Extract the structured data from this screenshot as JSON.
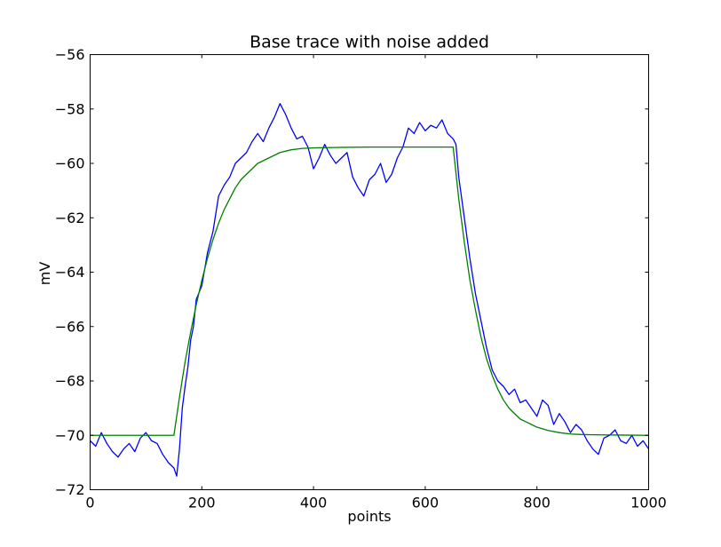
{
  "chart_data": {
    "type": "line",
    "title": "Base trace with noise added",
    "xlabel": "points",
    "ylabel": "mV",
    "xlim": [
      0,
      1000
    ],
    "ylim": [
      -72,
      -56
    ],
    "xticks": [
      0,
      200,
      400,
      600,
      800,
      1000
    ],
    "xtick_labels": [
      "0",
      "200",
      "400",
      "600",
      "800",
      "1000"
    ],
    "yticks": [
      -72,
      -70,
      -68,
      -66,
      -64,
      -62,
      -60,
      -58,
      -56
    ],
    "ytick_labels": [
      "−72",
      "−70",
      "−68",
      "−66",
      "−64",
      "−62",
      "−60",
      "−58",
      "−56"
    ],
    "grid": false,
    "legend": false,
    "series": [
      {
        "color": "#0000ff",
        "x": [
          0,
          10,
          20,
          30,
          40,
          50,
          60,
          70,
          80,
          90,
          100,
          110,
          120,
          130,
          140,
          150,
          155,
          160,
          165,
          170,
          175,
          180,
          185,
          190,
          200,
          210,
          220,
          230,
          240,
          250,
          260,
          270,
          280,
          290,
          300,
          310,
          320,
          330,
          340,
          350,
          360,
          370,
          380,
          390,
          400,
          410,
          420,
          430,
          440,
          450,
          460,
          470,
          480,
          490,
          500,
          510,
          520,
          530,
          540,
          550,
          560,
          570,
          580,
          590,
          600,
          610,
          620,
          630,
          640,
          650,
          655,
          660,
          670,
          680,
          690,
          700,
          710,
          720,
          730,
          740,
          750,
          760,
          770,
          780,
          790,
          800,
          810,
          820,
          830,
          840,
          850,
          860,
          870,
          880,
          890,
          900,
          910,
          920,
          930,
          940,
          950,
          960,
          970,
          980,
          990,
          1000
        ],
        "y": [
          -70.2,
          -70.4,
          -69.9,
          -70.3,
          -70.6,
          -70.8,
          -70.5,
          -70.3,
          -70.6,
          -70.1,
          -69.9,
          -70.2,
          -70.3,
          -70.7,
          -71.0,
          -71.2,
          -71.5,
          -70.5,
          -69.0,
          -68.2,
          -67.5,
          -66.5,
          -66.0,
          -65.0,
          -64.5,
          -63.3,
          -62.5,
          -61.2,
          -60.8,
          -60.5,
          -60.0,
          -59.8,
          -59.6,
          -59.2,
          -58.9,
          -59.2,
          -58.7,
          -58.3,
          -57.8,
          -58.2,
          -58.7,
          -59.1,
          -59.0,
          -59.4,
          -60.2,
          -59.8,
          -59.3,
          -59.7,
          -60.0,
          -59.8,
          -59.6,
          -60.5,
          -60.9,
          -61.2,
          -60.6,
          -60.4,
          -60.0,
          -60.7,
          -60.4,
          -59.8,
          -59.4,
          -58.7,
          -58.9,
          -58.5,
          -58.8,
          -58.6,
          -58.7,
          -58.4,
          -58.9,
          -59.1,
          -59.3,
          -60.5,
          -62.0,
          -63.5,
          -64.8,
          -65.8,
          -66.8,
          -67.6,
          -68.0,
          -68.2,
          -68.5,
          -68.3,
          -68.8,
          -68.7,
          -69.0,
          -69.3,
          -68.7,
          -68.9,
          -69.6,
          -69.2,
          -69.5,
          -69.9,
          -69.6,
          -69.8,
          -70.2,
          -70.5,
          -70.7,
          -70.1,
          -70.0,
          -69.8,
          -70.2,
          -70.3,
          -70.0,
          -70.4,
          -70.2,
          -70.5
        ]
      },
      {
        "color": "#008000",
        "x": [
          0,
          50,
          100,
          150,
          160,
          170,
          180,
          190,
          200,
          210,
          220,
          230,
          240,
          250,
          260,
          270,
          280,
          290,
          300,
          320,
          340,
          360,
          380,
          400,
          450,
          500,
          550,
          600,
          650,
          660,
          670,
          680,
          690,
          700,
          710,
          720,
          730,
          740,
          750,
          760,
          770,
          780,
          790,
          800,
          820,
          840,
          860,
          880,
          900,
          950,
          1000
        ],
        "y": [
          -70.0,
          -70.0,
          -70.0,
          -70.0,
          -68.6,
          -67.3,
          -66.2,
          -65.2,
          -64.3,
          -63.5,
          -62.8,
          -62.2,
          -61.7,
          -61.3,
          -60.9,
          -60.6,
          -60.4,
          -60.2,
          -60.0,
          -59.8,
          -59.6,
          -59.5,
          -59.45,
          -59.43,
          -59.41,
          -59.4,
          -59.4,
          -59.4,
          -59.4,
          -61.3,
          -62.9,
          -64.3,
          -65.4,
          -66.4,
          -67.2,
          -67.8,
          -68.3,
          -68.7,
          -69.0,
          -69.2,
          -69.4,
          -69.5,
          -69.6,
          -69.7,
          -69.82,
          -69.9,
          -69.95,
          -69.97,
          -69.98,
          -69.99,
          -70.0
        ]
      }
    ]
  }
}
